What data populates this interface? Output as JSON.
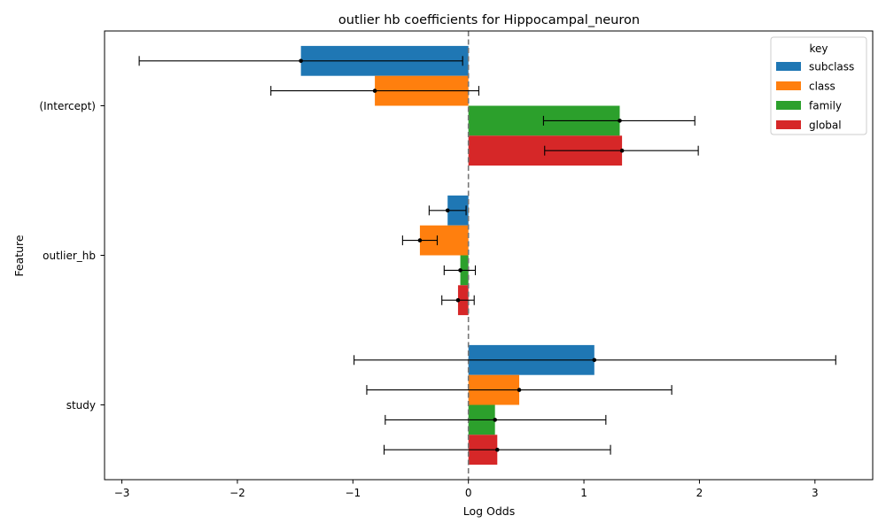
{
  "chart_data": {
    "type": "bar",
    "orientation": "horizontal",
    "title": "outlier hb coefficients for Hippocampal_neuron",
    "xlabel": "Log Odds",
    "ylabel": "Feature",
    "xlim": [
      -3.15,
      3.5
    ],
    "xticks": [
      -3,
      -2,
      -1,
      0,
      1,
      2,
      3
    ],
    "xtick_labels": [
      "−3",
      "−2",
      "−1",
      "0",
      "1",
      "2",
      "3"
    ],
    "categories": [
      "(Intercept)",
      "outlier_hb",
      "study"
    ],
    "reference_line": 0,
    "legend": {
      "title": "key",
      "position": "top-right"
    },
    "series": [
      {
        "name": "subclass",
        "color": "#1f77b4",
        "values": [
          -1.45,
          -0.18,
          1.09
        ],
        "err_low": [
          -2.85,
          -0.34,
          -0.99
        ],
        "err_high": [
          -0.05,
          -0.02,
          3.18
        ]
      },
      {
        "name": "class",
        "color": "#ff7f0e",
        "values": [
          -0.81,
          -0.42,
          0.44
        ],
        "err_low": [
          -1.71,
          -0.57,
          -0.88
        ],
        "err_high": [
          0.09,
          -0.27,
          1.76
        ]
      },
      {
        "name": "family",
        "color": "#2ca02c",
        "values": [
          1.31,
          -0.07,
          0.23
        ],
        "err_low": [
          0.65,
          -0.21,
          -0.72
        ],
        "err_high": [
          1.96,
          0.06,
          1.19
        ]
      },
      {
        "name": "global",
        "color": "#d62728",
        "values": [
          1.33,
          -0.09,
          0.25
        ],
        "err_low": [
          0.66,
          -0.23,
          -0.73
        ],
        "err_high": [
          1.99,
          0.05,
          1.23
        ]
      }
    ],
    "grid": false
  }
}
